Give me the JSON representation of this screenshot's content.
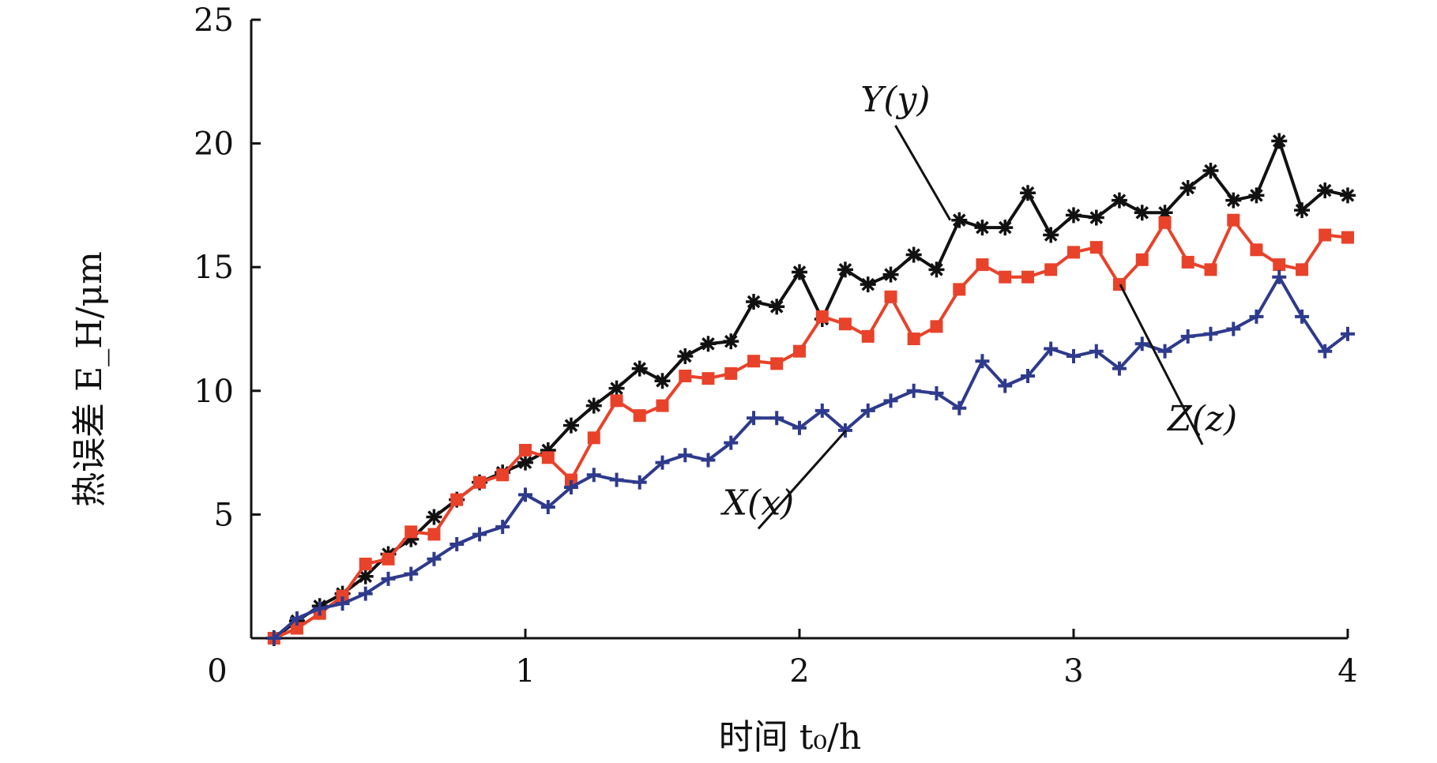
{
  "chart_data": {
    "type": "line",
    "xlabel": "时间 t₀/h",
    "ylabel": "热误差 E_H/μm",
    "xlim": [
      0,
      4
    ],
    "ylim": [
      0,
      25
    ],
    "xticks": [
      0,
      1,
      2,
      3,
      4
    ],
    "yticks": [
      5,
      10,
      15,
      20,
      25
    ],
    "x_tick_labels": [
      "0",
      "1",
      "2",
      "3",
      "4"
    ],
    "y_tick_labels": [
      "5",
      "10",
      "15",
      "20",
      "25"
    ],
    "grid": false,
    "x": [
      0.083,
      0.167,
      0.25,
      0.333,
      0.417,
      0.5,
      0.583,
      0.667,
      0.75,
      0.833,
      0.917,
      1.0,
      1.083,
      1.167,
      1.25,
      1.333,
      1.417,
      1.5,
      1.583,
      1.667,
      1.75,
      1.833,
      1.917,
      2.0,
      2.083,
      2.167,
      2.25,
      2.333,
      2.417,
      2.5,
      2.583,
      2.667,
      2.75,
      2.833,
      2.917,
      3.0,
      3.083,
      3.167,
      3.25,
      3.333,
      3.417,
      3.5,
      3.583,
      3.667,
      3.75,
      3.833,
      3.917,
      4.0
    ],
    "series": [
      {
        "name": "Y(y)",
        "color": "#111111",
        "marker": "asterisk",
        "values": [
          0.0,
          0.7,
          1.3,
          1.8,
          2.5,
          3.4,
          4.0,
          4.9,
          5.6,
          6.3,
          6.7,
          7.1,
          7.6,
          8.6,
          9.4,
          10.1,
          10.9,
          10.4,
          11.4,
          11.9,
          12.0,
          13.6,
          13.4,
          14.8,
          12.9,
          14.9,
          14.3,
          14.7,
          15.5,
          14.9,
          16.9,
          16.6,
          16.6,
          18.0,
          16.3,
          17.1,
          17.0,
          17.7,
          17.2,
          17.2,
          18.2,
          18.9,
          17.7,
          17.9,
          20.1,
          17.3,
          18.1,
          17.9
        ]
      },
      {
        "name": "Z(z)",
        "color": "#e8422a",
        "marker": "square",
        "values": [
          0.0,
          0.4,
          1.0,
          1.7,
          3.0,
          3.2,
          4.3,
          4.2,
          5.6,
          6.3,
          6.6,
          7.6,
          7.3,
          6.4,
          8.1,
          9.6,
          9.0,
          9.4,
          10.6,
          10.5,
          10.7,
          11.2,
          11.1,
          11.6,
          13.0,
          12.7,
          12.2,
          13.8,
          12.1,
          12.6,
          14.1,
          15.1,
          14.6,
          14.6,
          14.9,
          15.6,
          15.8,
          14.3,
          15.3,
          16.8,
          15.2,
          14.9,
          16.9,
          15.7,
          15.1,
          14.9,
          16.3,
          16.2
        ]
      },
      {
        "name": "X(x)",
        "color": "#2e3a8c",
        "marker": "plus",
        "values": [
          0.0,
          0.8,
          1.2,
          1.4,
          1.8,
          2.4,
          2.6,
          3.2,
          3.8,
          4.2,
          4.5,
          5.8,
          5.3,
          6.1,
          6.6,
          6.4,
          6.3,
          7.1,
          7.4,
          7.2,
          7.9,
          8.9,
          8.9,
          8.5,
          9.2,
          8.4,
          9.2,
          9.6,
          10.0,
          9.9,
          9.3,
          11.2,
          10.2,
          10.6,
          11.7,
          11.4,
          11.6,
          10.9,
          11.9,
          11.6,
          12.2,
          12.3,
          12.5,
          13.0,
          14.6,
          13.0,
          11.6,
          12.3
        ]
      }
    ],
    "annotations": [
      {
        "text": "Y(y)",
        "series": "Y(y)",
        "x": 2.55,
        "y": 16.9,
        "label_x": 2.35,
        "label_y": 21.3
      },
      {
        "text": "Z(z)",
        "series": "Z(z)",
        "x": 3.17,
        "y": 14.3,
        "label_x": 3.47,
        "label_y": 8.4
      },
      {
        "text": "X(x)",
        "series": "X(x)",
        "x": 2.17,
        "y": 8.4,
        "label_x": 1.85,
        "label_y": 5.0
      }
    ]
  }
}
